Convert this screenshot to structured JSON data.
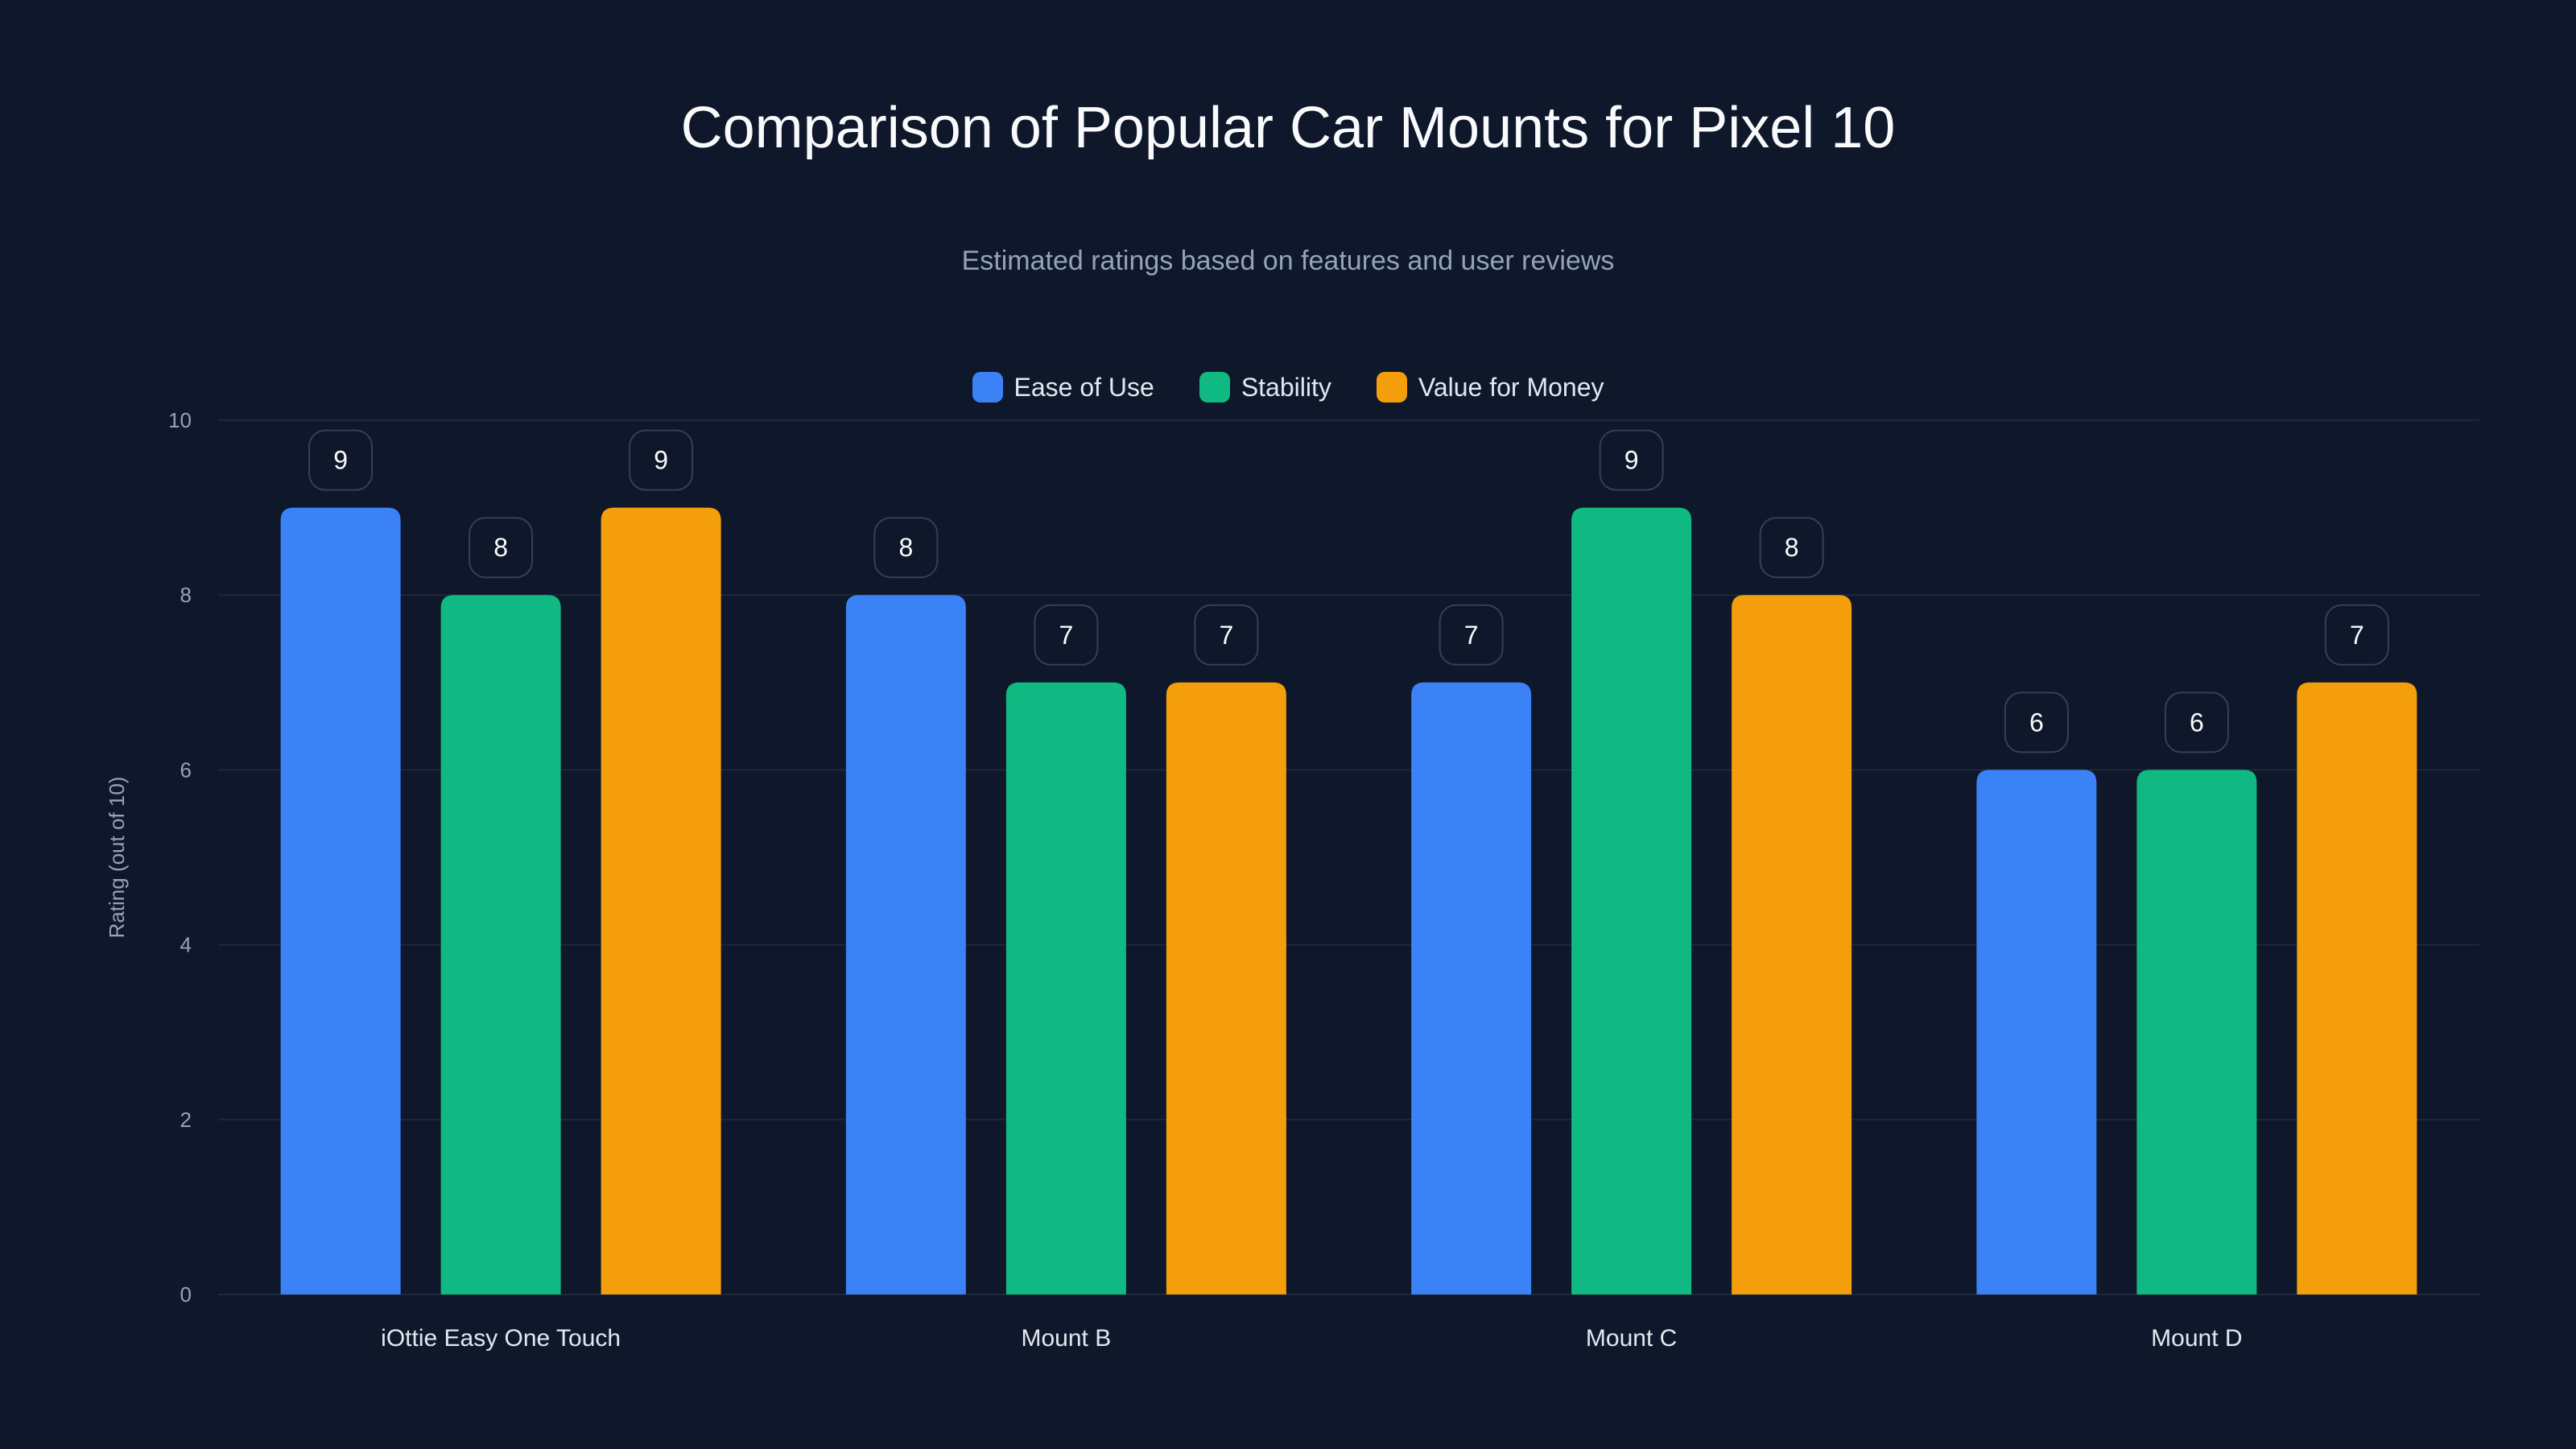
{
  "chart_data": {
    "type": "bar",
    "title": "Comparison of Popular Car Mounts for Pixel 10",
    "subtitle": "Estimated ratings based on features and user reviews",
    "xlabel": "",
    "ylabel": "Rating (out of 10)",
    "ylim": [
      0,
      10
    ],
    "yticks": [
      0,
      2,
      4,
      6,
      8,
      10
    ],
    "grid": true,
    "legend_position": "top-center",
    "categories": [
      "iOttie Easy One Touch",
      "Mount B",
      "Mount C",
      "Mount D"
    ],
    "series": [
      {
        "name": "Ease of Use",
        "color": "#3b82f6",
        "values": [
          9,
          8,
          7,
          6
        ]
      },
      {
        "name": "Stability",
        "color": "#10b981",
        "values": [
          8,
          7,
          9,
          6
        ]
      },
      {
        "name": "Value for Money",
        "color": "#f59e0b",
        "values": [
          9,
          7,
          8,
          7
        ]
      }
    ]
  }
}
